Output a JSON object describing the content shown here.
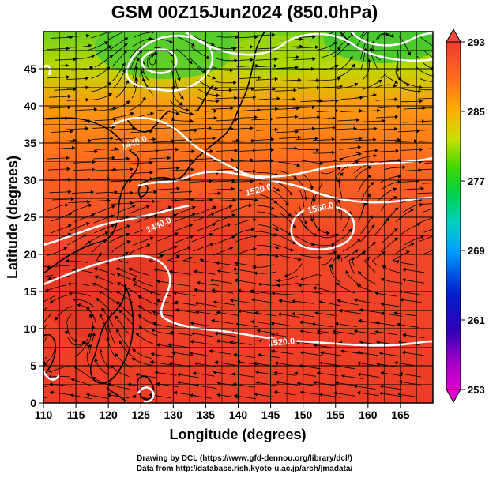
{
  "title": "GSM 00Z15Jun2024 (850.0hPa)",
  "credits": {
    "line1": "Drawing by DCL (https://www.gfd-dennou.org/library/dcl/)",
    "line2": "Data from http://database.rish.kyoto-u.ac.jp/arch/jmadata/"
  },
  "map": {
    "xlabel": "Longitude (degrees)",
    "ylabel": "Latitude (degrees)",
    "lon_range": [
      110,
      170
    ],
    "lat_range": [
      0,
      50
    ],
    "x_ticks": [
      "110",
      "115",
      "120",
      "125",
      "130",
      "135",
      "140",
      "145",
      "150",
      "155",
      "160",
      "165"
    ],
    "y_ticks": [
      "0",
      "5",
      "10",
      "15",
      "20",
      "25",
      "30",
      "35",
      "40",
      "45"
    ],
    "contour_labels": [
      "1440.0",
      "1520.0",
      "1560.0",
      "1480.0",
      "1520.0"
    ],
    "colorbar": {
      "ticks": [
        "253",
        "261",
        "269",
        "277",
        "285",
        "293"
      ],
      "colors": [
        "#e000d0",
        "#6000c0",
        "#0000c8",
        "#0050e0",
        "#00a0ff",
        "#00d0c8",
        "#00d060",
        "#30d000",
        "#a0e000",
        "#e8e000",
        "#ffa000",
        "#ff6020",
        "#f03030"
      ]
    }
  }
}
